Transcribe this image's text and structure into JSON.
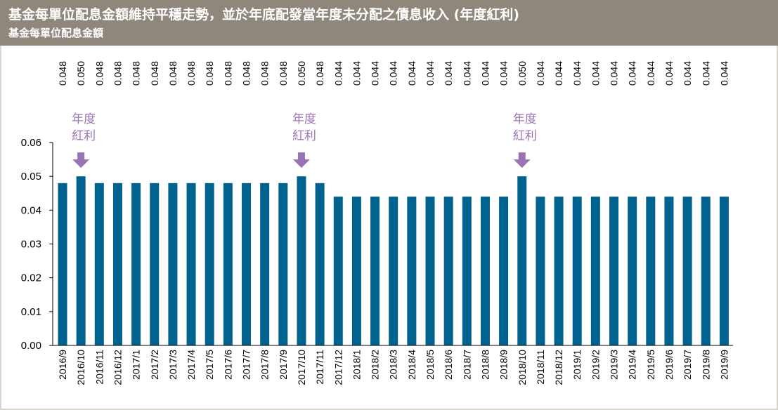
{
  "header": {
    "title": "基金每單位配息金額維持平穩走勢，並於年底配發當年度未分配之債息收入 (年度紅利)",
    "subtitle": "基金每單位配息金額"
  },
  "colors": {
    "header_bg": "#8f877b",
    "bar": "#00628f",
    "annotation": "#9b72b5",
    "axis": "#000000"
  },
  "chart_data": {
    "type": "bar",
    "categories": [
      "2016/9",
      "2016/10",
      "2016/11",
      "2016/12",
      "2017/1",
      "2017/2",
      "2017/3",
      "2017/4",
      "2017/5",
      "2017/6",
      "2017/7",
      "2017/8",
      "2017/9",
      "2017/10",
      "2017/11",
      "2017/12",
      "2018/1",
      "2018/2",
      "2018/3",
      "2018/4",
      "2018/5",
      "2018/6",
      "2018/7",
      "2018/8",
      "2018/9",
      "2018/10",
      "2018/11",
      "2018/12",
      "2019/1",
      "2019/2",
      "2019/3",
      "2019/4",
      "2019/5",
      "2019/6",
      "2019/7",
      "2019/8",
      "2019/9"
    ],
    "values": [
      0.048,
      0.05,
      0.048,
      0.048,
      0.048,
      0.048,
      0.048,
      0.048,
      0.048,
      0.048,
      0.048,
      0.048,
      0.048,
      0.05,
      0.048,
      0.044,
      0.044,
      0.044,
      0.044,
      0.044,
      0.044,
      0.044,
      0.044,
      0.044,
      0.044,
      0.05,
      0.044,
      0.044,
      0.044,
      0.044,
      0.044,
      0.044,
      0.044,
      0.044,
      0.044,
      0.044,
      0.044
    ],
    "value_labels": [
      "0.048",
      "0.050",
      "0.048",
      "0.048",
      "0.048",
      "0.048",
      "0.048",
      "0.048",
      "0.048",
      "0.048",
      "0.048",
      "0.048",
      "0.048",
      "0.050",
      "0.048",
      "0.044",
      "0.044",
      "0.044",
      "0.044",
      "0.044",
      "0.044",
      "0.044",
      "0.044",
      "0.044",
      "0.044",
      "0.050",
      "0.044",
      "0.044",
      "0.044",
      "0.044",
      "0.044",
      "0.044",
      "0.044",
      "0.044",
      "0.044",
      "0.044",
      "0.044"
    ],
    "ylim": [
      0,
      0.06
    ],
    "yticks": [
      "0.00",
      "0.01",
      "0.02",
      "0.03",
      "0.04",
      "0.05",
      "0.06"
    ],
    "annotations": [
      {
        "index": 1,
        "line1": "年度",
        "line2": "紅利"
      },
      {
        "index": 13,
        "line1": "年度",
        "line2": "紅利"
      },
      {
        "index": 25,
        "line1": "年度",
        "line2": "紅利"
      }
    ],
    "grid": false
  }
}
